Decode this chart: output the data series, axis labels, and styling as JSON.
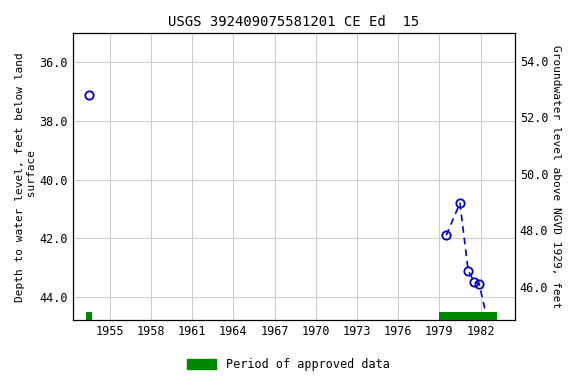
{
  "title": "USGS 392409075581201 CE Ed  15",
  "ylabel_left": "Depth to water level, feet below land\n surface",
  "ylabel_right": "Groundwater level above NGVD 1929, feet",
  "ylim_left": [
    44.8,
    35.0
  ],
  "ylim_right": [
    44.8,
    55.0
  ],
  "xlim": [
    1952.3,
    1984.5
  ],
  "xticks": [
    1955,
    1958,
    1961,
    1964,
    1967,
    1970,
    1973,
    1976,
    1979,
    1982
  ],
  "yticks_left": [
    36.0,
    38.0,
    40.0,
    42.0,
    44.0
  ],
  "yticks_right": [
    46.0,
    48.0,
    50.0,
    52.0,
    54.0
  ],
  "segment1_x": [
    1953.5
  ],
  "segment1_y": [
    37.1
  ],
  "segment2_x": [
    1979.5,
    1980.5,
    1981.1,
    1981.55,
    1981.9,
    1982.6
  ],
  "segment2_y": [
    41.9,
    40.8,
    43.1,
    43.5,
    43.55,
    45.0
  ],
  "line_color": "#0000CC",
  "background_color": "#ffffff",
  "grid_color": "#cccccc",
  "approved_period_small": [
    1953.3,
    1953.7
  ],
  "approved_period_large": [
    1979.0,
    1983.2
  ],
  "approved_color": "#008800",
  "legend_label": "Period of approved data",
  "title_fontsize": 10,
  "axis_fontsize": 8,
  "tick_fontsize": 8.5
}
